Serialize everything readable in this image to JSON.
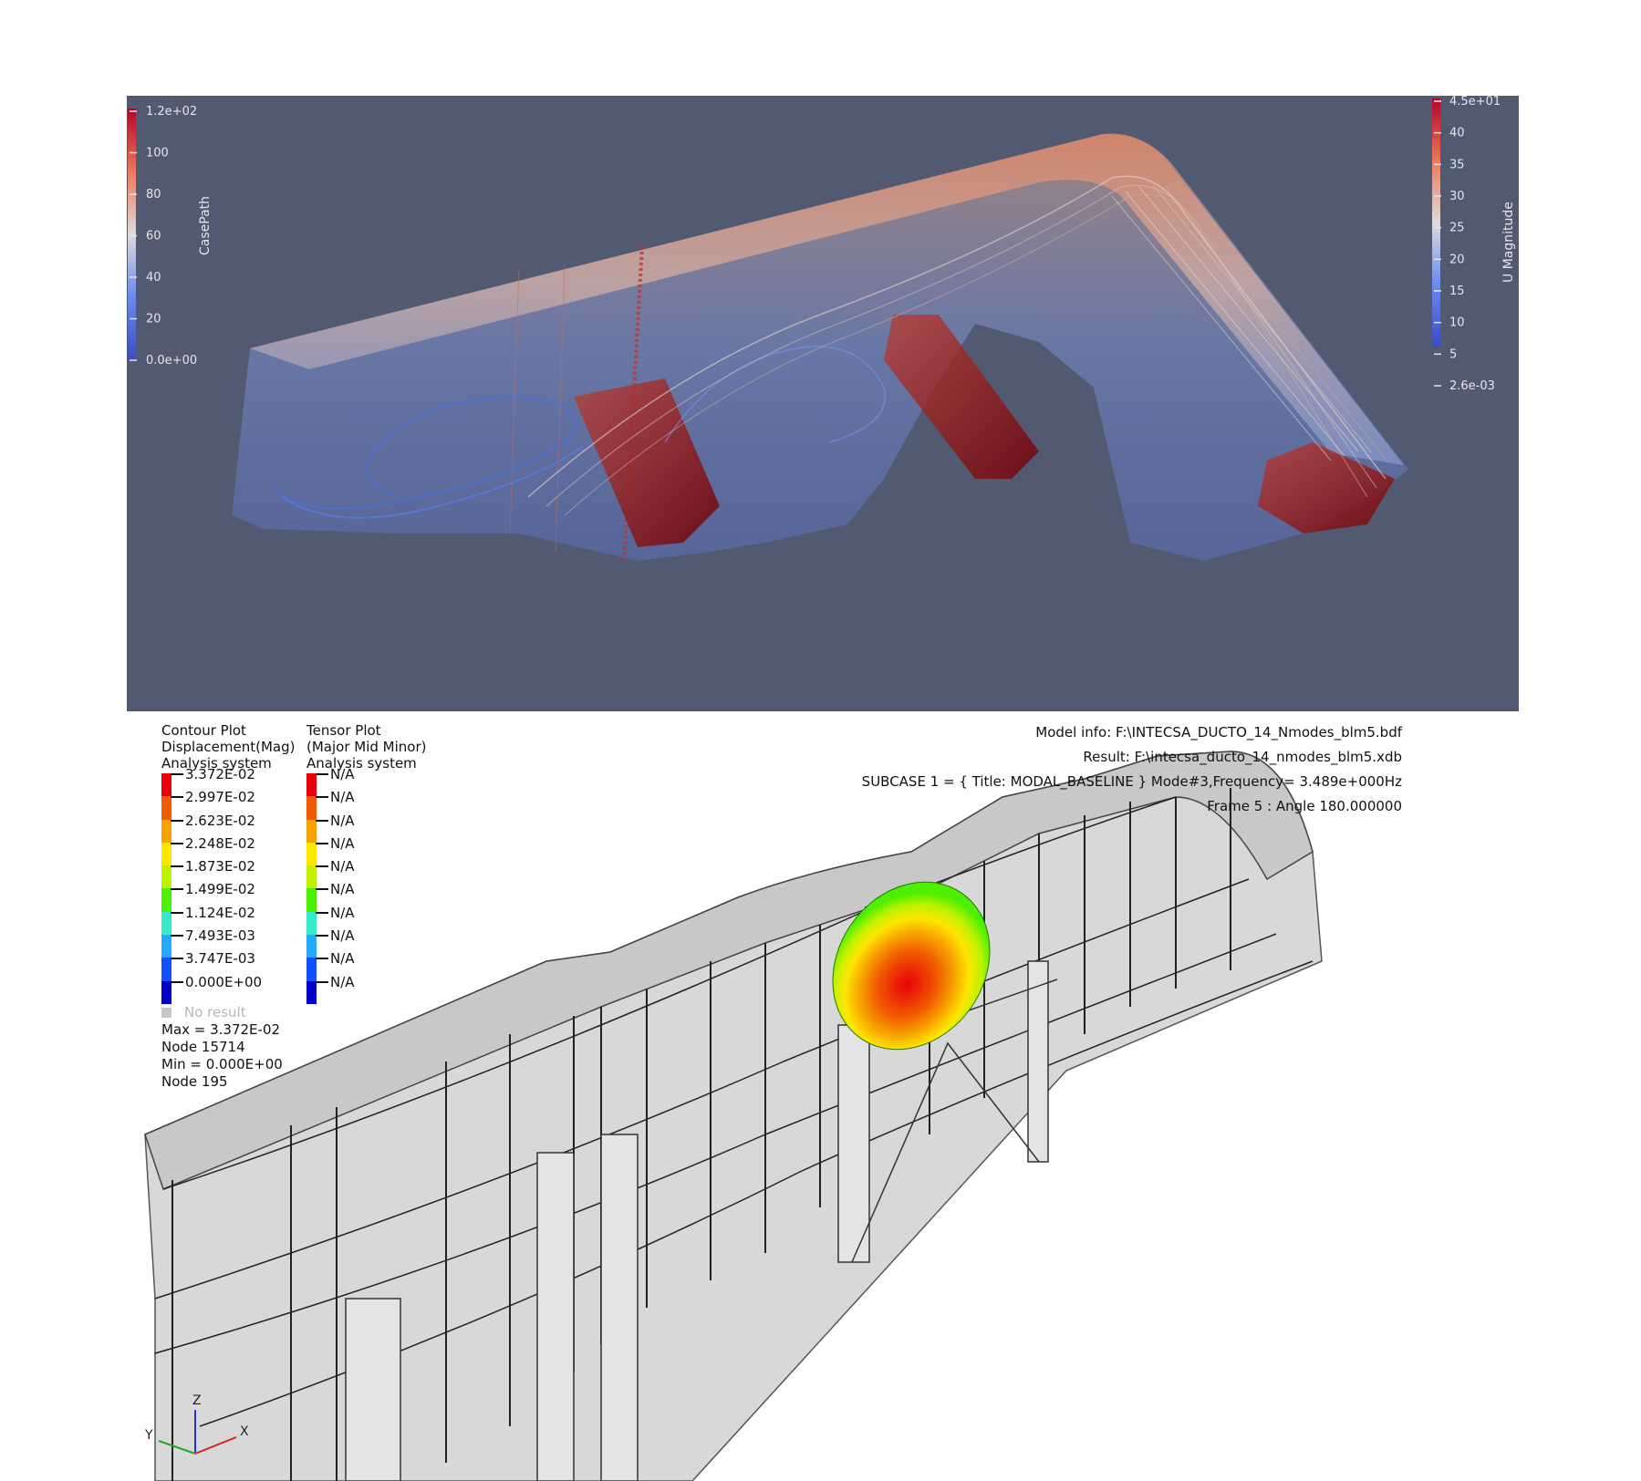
{
  "cfd": {
    "left_colorbar": {
      "title": "CasePath",
      "ticks": [
        "1.2e+02",
        "100",
        "80",
        "60",
        "40",
        "20",
        "0.0e+00"
      ],
      "colors": [
        "#b40426",
        "#e9785d",
        "#dddcdc",
        "#6a8bef",
        "#3b4cc0"
      ]
    },
    "right_colorbar": {
      "title": "U Magnitude",
      "ticks": [
        "4.5e+01",
        "40",
        "35",
        "30",
        "25",
        "20",
        "15",
        "10",
        "5",
        "2.6e-03"
      ],
      "colors": [
        "#b40426",
        "#e9785d",
        "#dddcdc",
        "#6a8bef",
        "#3b4cc0"
      ]
    },
    "background": "#525a72"
  },
  "fea": {
    "contour_legend": {
      "title": "Contour Plot",
      "subtitle": "Displacement(Mag)",
      "system": "Analysis system",
      "values": [
        "3.372E-02",
        "2.997E-02",
        "2.623E-02",
        "2.248E-02",
        "1.873E-02",
        "1.499E-02",
        "1.124E-02",
        "7.493E-03",
        "3.747E-03",
        "0.000E+00"
      ],
      "colors": [
        "#e8000b",
        "#f05a00",
        "#f7a200",
        "#ffe600",
        "#bff200",
        "#4cf000",
        "#35e8c8",
        "#26a8ff",
        "#1050ff",
        "#0000c8"
      ],
      "no_result": "No result",
      "max": "Max = 3.372E-02",
      "max_node": "Node 15714",
      "min": "Min = 0.000E+00",
      "min_node": "Node 195"
    },
    "tensor_legend": {
      "title": "Tensor Plot",
      "subtitle": "(Major Mid Minor)",
      "system": "Analysis system",
      "values": [
        "N/A",
        "N/A",
        "N/A",
        "N/A",
        "N/A",
        "N/A",
        "N/A",
        "N/A",
        "N/A",
        "N/A"
      ],
      "colors": [
        "#e8000b",
        "#f05a00",
        "#f7a200",
        "#ffe600",
        "#bff200",
        "#4cf000",
        "#35e8c8",
        "#26a8ff",
        "#1050ff",
        "#0000c8"
      ]
    },
    "model_info": "Model info: F:\\INTECSA_DUCTO_14_Nmodes_blm5.bdf",
    "result": "Result: F:\\intecsa_ducto_14_nmodes_blm5.xdb",
    "subcase": "SUBCASE 1 =   { Title: MODAL_BASELINE }  Mode#3,Frequency=  3.489e+000Hz",
    "frame": "Frame 5 : Angle 180.000000",
    "triad": {
      "z": "Z",
      "y": "Y",
      "x": "X"
    }
  }
}
